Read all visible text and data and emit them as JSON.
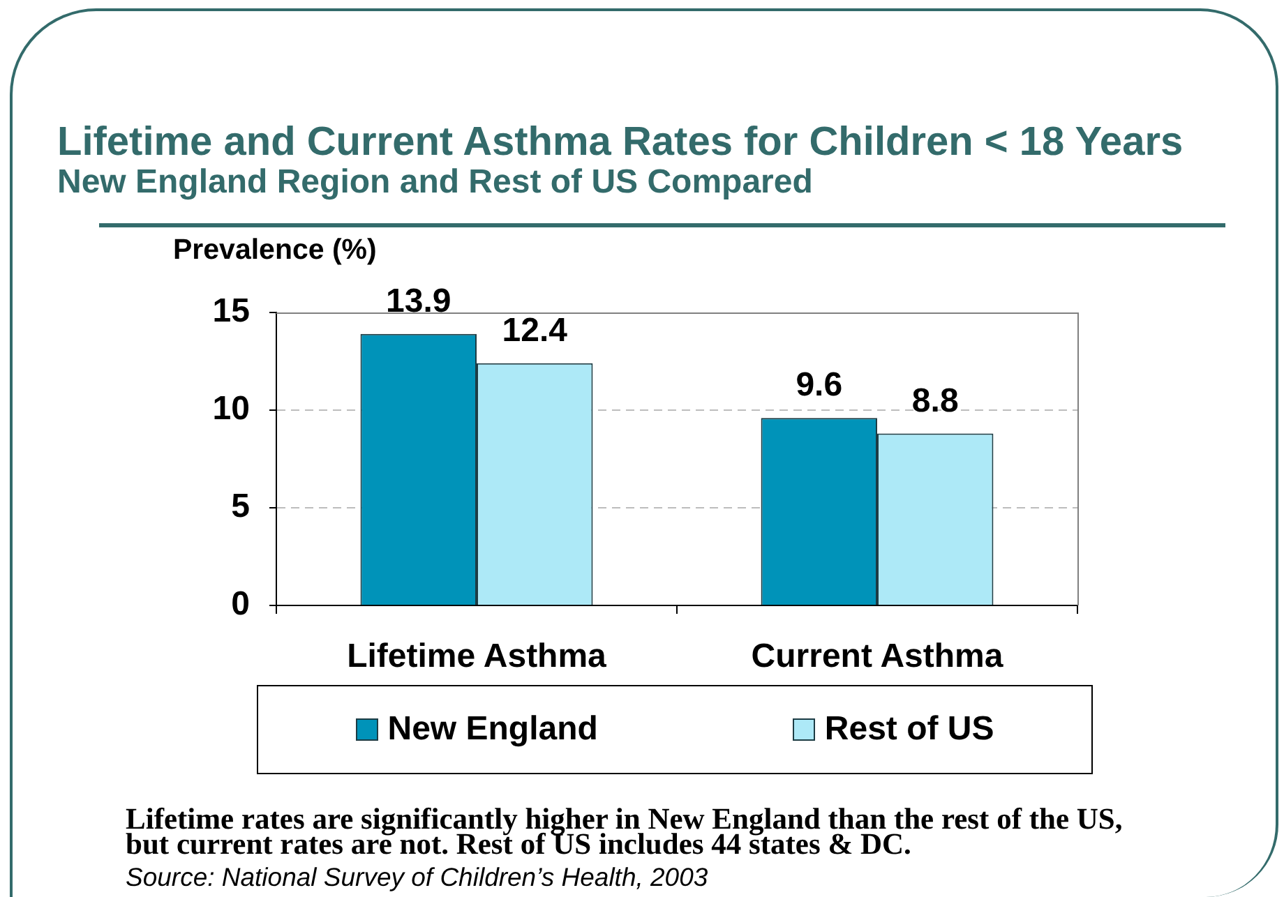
{
  "chart_data": {
    "type": "bar",
    "title": "Lifetime and Current Asthma Rates for Children < 18 Years",
    "subtitle": "New England Region and Rest of US Compared",
    "ylabel": "Prevalence (%)",
    "categories": [
      "Lifetime Asthma",
      "Current Asthma"
    ],
    "series": [
      {
        "name": "New England",
        "color": "#0093b9",
        "values": [
          13.9,
          9.6
        ]
      },
      {
        "name": "Rest of US",
        "color": "#ade9f7",
        "values": [
          12.4,
          8.8
        ]
      }
    ],
    "ylim": [
      0,
      15
    ],
    "yticks": [
      0,
      5,
      10,
      15
    ],
    "grid": "y",
    "legend": "bottom",
    "data_labels": true,
    "annotations": [
      "Lifetime rates are significantly higher in New England than the rest of the US, but current rates are not. Rest of US includes 44 states & DC.",
      "Source: National Survey of Children’s Health, 2003"
    ]
  }
}
